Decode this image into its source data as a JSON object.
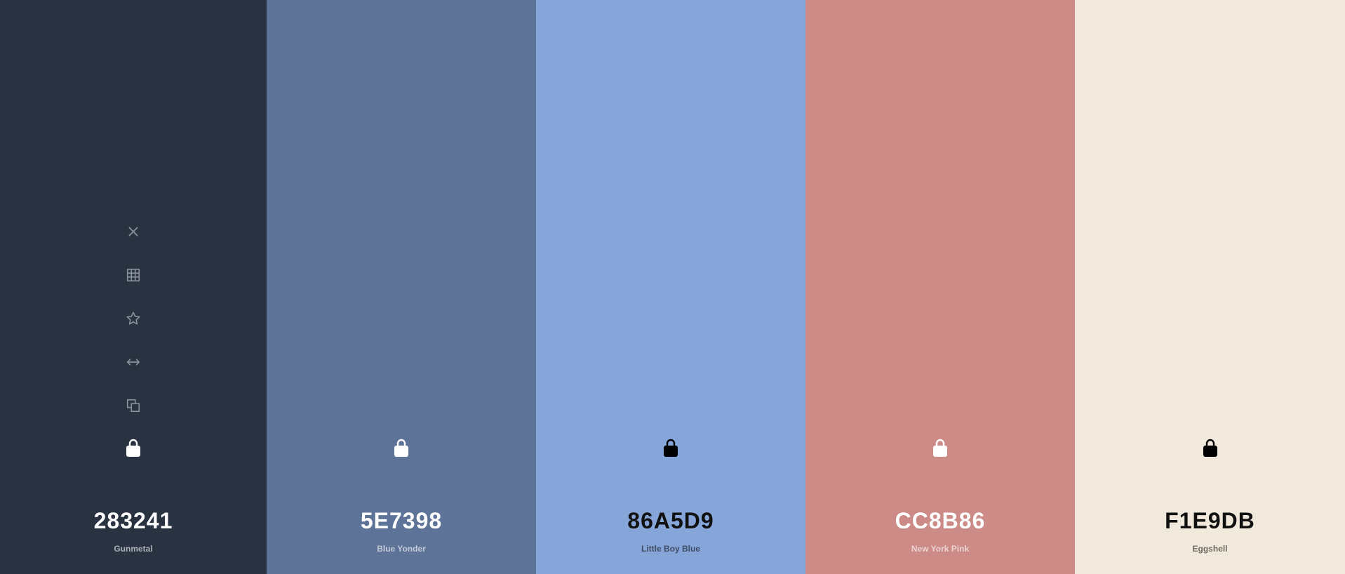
{
  "swatches": [
    {
      "hex": "283241",
      "name": "Gunmetal",
      "color": "#283241",
      "text_theme": "light"
    },
    {
      "hex": "5E7398",
      "name": "Blue Yonder",
      "color": "#5E7398",
      "text_theme": "light"
    },
    {
      "hex": "86A5D9",
      "name": "Little Boy Blue",
      "color": "#86A5D9",
      "text_theme": "dark"
    },
    {
      "hex": "CC8B86",
      "name": "New York Pink",
      "color": "#CC8B86",
      "text_theme": "light"
    },
    {
      "hex": "F1E9DB",
      "name": "Eggshell",
      "color": "#F1E9DB",
      "text_theme": "dark"
    }
  ],
  "toolbar_icons": [
    "close-icon",
    "grid-icon",
    "star-icon",
    "drag-arrows-icon",
    "copy-icon"
  ],
  "lock_icon": "lock-icon",
  "colors": {
    "icon_muted": "#8a909b"
  }
}
